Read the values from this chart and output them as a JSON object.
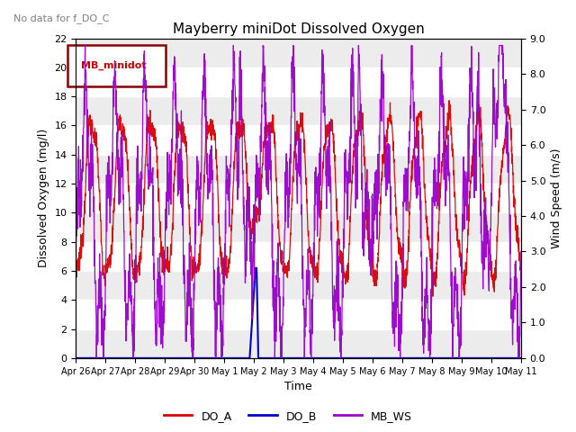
{
  "title": "Mayberry miniDot Dissolved Oxygen",
  "xlabel": "Time",
  "ylabel_left": "Dissolved Oxygen (mg/l)",
  "ylabel_right": "Wind Speed (m/s)",
  "ylim_left": [
    0,
    22
  ],
  "ylim_right": [
    0.0,
    9.0
  ],
  "no_data_text": "No data for f_DO_C",
  "legend_box_label": "MB_minidot",
  "legend_entries": [
    "DO_A",
    "DO_B",
    "MB_WS"
  ],
  "legend_colors": [
    "#dd0000",
    "#0000cc",
    "#9900cc"
  ],
  "xtick_labels": [
    "Apr 26",
    "Apr 27",
    "Apr 28",
    "Apr 29",
    "Apr 30",
    "May 1",
    "May 2",
    "May 3",
    "May 4",
    "May 5",
    "May 6",
    "May 7",
    "May 8",
    "May 9",
    "May 10",
    "May 11"
  ],
  "background_color": "#ffffff",
  "band_color": "#e0e0e0",
  "figsize": [
    6.4,
    4.8
  ],
  "dpi": 100
}
